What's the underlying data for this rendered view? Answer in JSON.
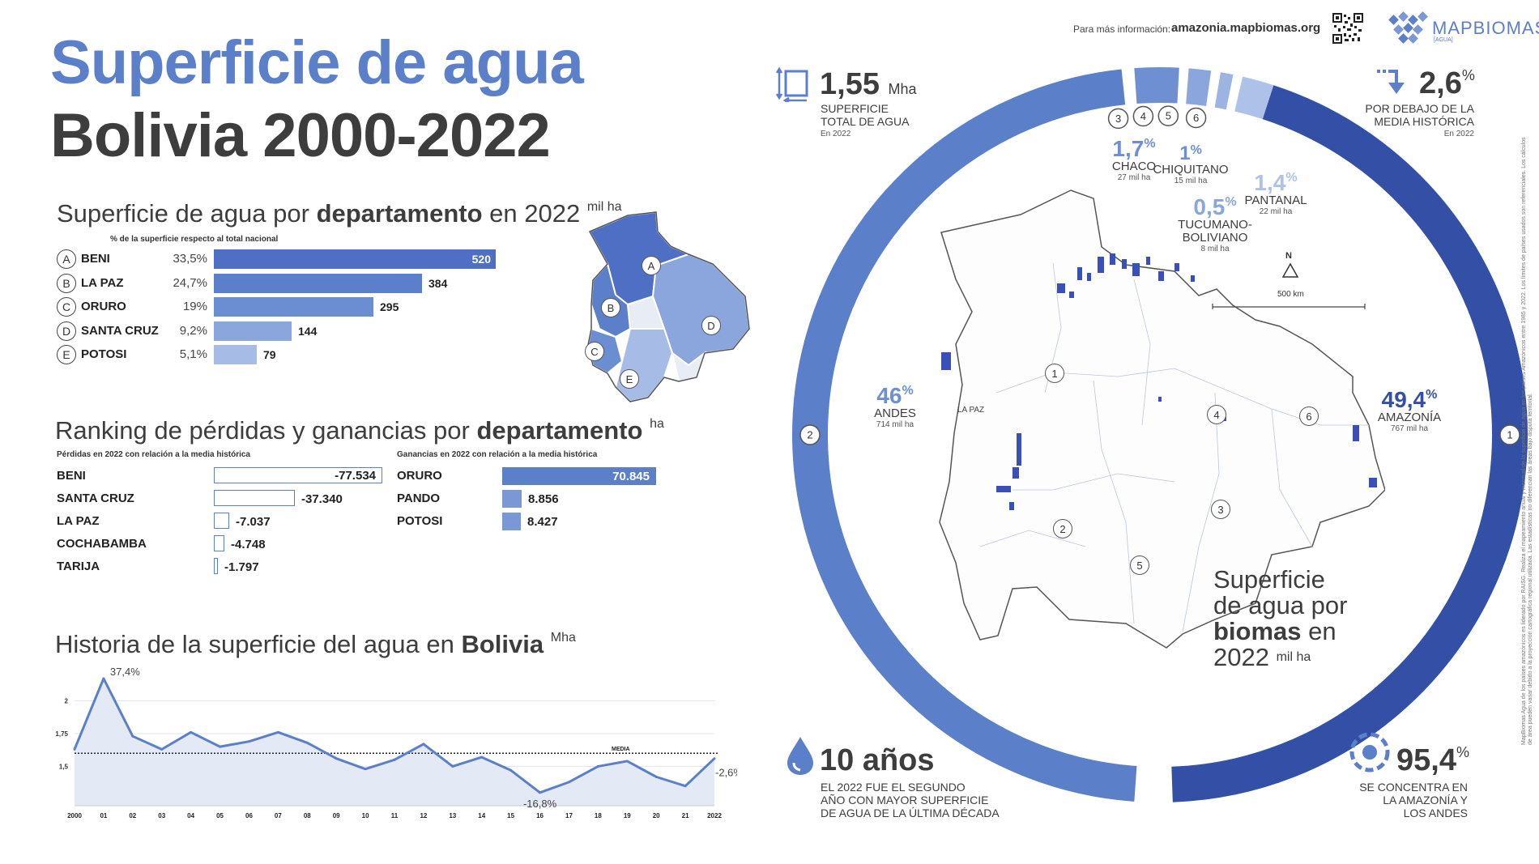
{
  "header": {
    "info_prefix": "Para más información:",
    "info_url": "amazonia.mapbiomas.org",
    "logo_text": "MAPBIOMAS",
    "logo_sub": "[AGUA]",
    "title_line1": "Superficie de agua",
    "title_line2": "Bolivia 2000-2022"
  },
  "departments": {
    "title_pre": "Superficie de agua por ",
    "title_bold": "departamento",
    "title_post": " en 2022",
    "title_unit": "mil ha",
    "note": "% de la superficie respecto al total nacional",
    "items": [
      {
        "letter": "A",
        "name": "BENI",
        "pct": "33,5%",
        "value": 520,
        "label": "520",
        "color": "#4f6fc4"
      },
      {
        "letter": "B",
        "name": "LA PAZ",
        "pct": "24,7%",
        "value": 384,
        "label": "384",
        "color": "#5b7fcb"
      },
      {
        "letter": "C",
        "name": "ORURO",
        "pct": "19%",
        "value": 295,
        "label": "295",
        "color": "#6b8dd2"
      },
      {
        "letter": "D",
        "name": "SANTA CRUZ",
        "pct": "9,2%",
        "value": 144,
        "label": "144",
        "color": "#8aa6dc"
      },
      {
        "letter": "E",
        "name": "POTOSI",
        "pct": "5,1%",
        "value": 79,
        "label": "79",
        "color": "#a6bce6"
      }
    ]
  },
  "ranking": {
    "title_pre": "Ranking de pérdidas y ganancias por ",
    "title_bold": "departamento",
    "title_unit": "ha",
    "loss_note": "Pérdidas en 2022 con relación a la media histórica",
    "gain_note": "Ganancias en 2022 con relación a la media histórica",
    "losses": [
      {
        "name": "BENI",
        "value": -77534,
        "label": "-77.534"
      },
      {
        "name": "SANTA CRUZ",
        "value": -37340,
        "label": "-37.340"
      },
      {
        "name": "LA PAZ",
        "value": -7037,
        "label": "-7.037"
      },
      {
        "name": "COCHABAMBA",
        "value": -4748,
        "label": "-4.748"
      },
      {
        "name": "TARIJA",
        "value": -1797,
        "label": "-1.797"
      }
    ],
    "gains": [
      {
        "name": "ORURO",
        "value": 70845,
        "label": "70.845"
      },
      {
        "name": "PANDO",
        "value": 8856,
        "label": "8.856"
      },
      {
        "name": "POTOSI",
        "value": 8427,
        "label": "8.427"
      }
    ]
  },
  "history": {
    "title_pre": "Historia de la superficie del agua en ",
    "title_bold": "Bolivia",
    "title_unit": "Mha",
    "media_label": "MEDIA",
    "ann_peak": "37,4%",
    "ann_low": "-16,8%",
    "ann_last": "-2,6%"
  },
  "chart_data": {
    "type": "area",
    "x": [
      "2000",
      "01",
      "02",
      "03",
      "04",
      "05",
      "06",
      "07",
      "08",
      "09",
      "10",
      "11",
      "12",
      "13",
      "14",
      "15",
      "16",
      "17",
      "18",
      "19",
      "20",
      "21",
      "2022"
    ],
    "values": [
      1.63,
      2.17,
      1.73,
      1.63,
      1.76,
      1.65,
      1.69,
      1.76,
      1.68,
      1.56,
      1.48,
      1.55,
      1.67,
      1.5,
      1.57,
      1.47,
      1.3,
      1.38,
      1.5,
      1.54,
      1.42,
      1.35,
      1.56
    ],
    "yticks": [
      "1,5",
      "1,75",
      "2"
    ],
    "ytick_values": [
      1.5,
      1.75,
      2.0
    ],
    "ylim": [
      1.2,
      2.25
    ],
    "media": 1.6,
    "grid": true,
    "series_color": "#5b7fc8",
    "fill_color": "#e3e9f5"
  },
  "stats": {
    "total_value": "1,55",
    "total_unit": "Mha",
    "total_label1": "SUPERFICIE",
    "total_label2": "TOTAL DE AGUA",
    "total_year": "En 2022",
    "below_value": "2,6",
    "below_sup": "%",
    "below_label1": "POR DEBAJO DE LA",
    "below_label2": "MEDIA HISTÓRICA",
    "below_year": "En 2022",
    "years_value": "10 años",
    "years_label1": "EL 2022 FUE EL SEGUNDO",
    "years_label2": "AÑO CON MAYOR SUPERFICIE",
    "years_label3": "DE AGUA DE LA ÚLTIMA DÉCADA",
    "concentra_value": "95,4",
    "concentra_sup": "%",
    "concentra_label1": "SE CONCENTRA EN",
    "concentra_label2": "LA AMAZONÍA Y",
    "concentra_label3": "LOS ANDES"
  },
  "biomes": {
    "title_l1": "Superficie",
    "title_l2": "de agua por",
    "title_l3": "biomas",
    "title_l3b": " en",
    "title_l4": "2022",
    "title_unit": "mil ha",
    "items": [
      {
        "num": "1",
        "name": "AMAZONÍA",
        "pct": "49,4",
        "ha": "767 mil ha",
        "share": 49.4,
        "color": "#3350a6"
      },
      {
        "num": "2",
        "name": "ANDES",
        "pct": "46",
        "ha": "714 mil ha",
        "share": 46.0,
        "color": "#5b7fc8"
      },
      {
        "num": "3",
        "name": "CHACO",
        "pct": "1,7",
        "ha": "27 mil ha",
        "share": 1.7,
        "color": "#6f8fd3"
      },
      {
        "num": "4",
        "name": "CHIQUITANO",
        "pct": "1",
        "ha": "15 mil ha",
        "share": 1.0,
        "color": "#8aa6dc"
      },
      {
        "num": "5",
        "name": "TUCUMANO-BOLIVIANO",
        "name1": "TUCUMANO-",
        "name2": "BOLIVIANO",
        "pct": "0,5",
        "ha": "8 mil ha",
        "share": 0.5,
        "color": "#9db4e2"
      },
      {
        "num": "6",
        "name": "PANTANAL",
        "pct": "1,4",
        "ha": "22 mil ha",
        "share": 1.4,
        "color": "#aec1e8"
      }
    ],
    "pct_sup": "%",
    "north": "N",
    "scale": "500 km",
    "city": "LA PAZ"
  },
  "side_note": "MapBiomas Agua de los países amazónicos es liderado por RAISG. Realiza el mapeamiento anual y mensual de la superficie de agua en los países Amazónicos entre 1985 y 2022. Los límites de países usados son referenciales. Los cálculos de área pueden variar debido a la proyección cartográfica regional utilizada. Las estadísticas no diferencian las áreas bajo disputa territorial."
}
